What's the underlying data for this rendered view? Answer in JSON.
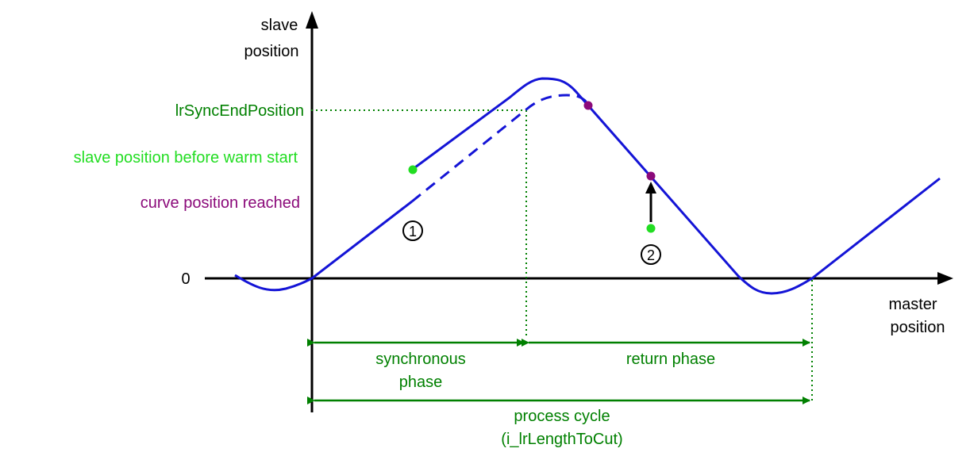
{
  "axes": {
    "y_label_line1": "slave",
    "y_label_line2": "position",
    "x_label_line1": "master",
    "x_label_line2": "position",
    "zero_label": "0"
  },
  "labels": {
    "sync_end_position": "lrSyncEndPosition",
    "slave_before_warm_start": "slave position before warm start",
    "curve_position_reached": "curve position reached"
  },
  "markers": {
    "case_1": "1",
    "case_2": "2"
  },
  "phases": {
    "synchronous_line1": "synchronous",
    "synchronous_line2": "phase",
    "return": "return phase",
    "process_cycle_line1": "process cycle",
    "process_cycle_line2": "(i_lrLengthToCut)"
  },
  "colors": {
    "curve": "#1414d6",
    "dimension": "#008000",
    "slave_start_point": "#22dd22",
    "reached_point": "#8b0a7a",
    "axis": "#000000"
  }
}
